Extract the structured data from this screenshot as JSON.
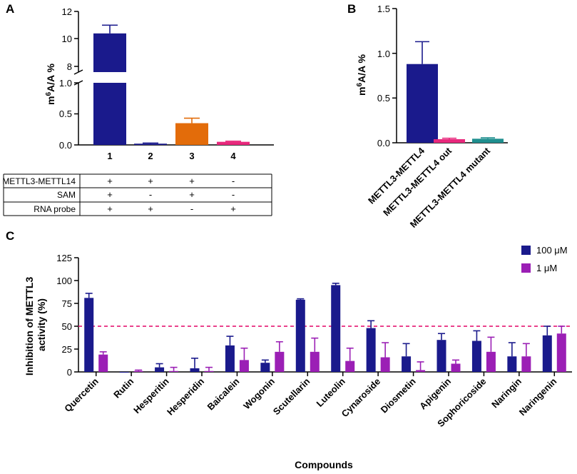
{
  "panels": {
    "A": {
      "label": "A",
      "ylabel_pre": "m",
      "ylabel_sup": "6",
      "ylabel_post": "A/A %",
      "upper_ticks": [
        "8",
        "10",
        "12"
      ],
      "lower_ticks": [
        "0.0",
        "0.5",
        "1.0"
      ],
      "table": {
        "rows": [
          {
            "label": "METTL3-METTL14",
            "values": [
              "+",
              "+",
              "+",
              "-"
            ]
          },
          {
            "label": "SAM",
            "values": [
              "+",
              "-",
              "+",
              "-"
            ]
          },
          {
            "label": "RNA probe",
            "values": [
              "+",
              "+",
              "-",
              "+"
            ]
          }
        ]
      }
    },
    "B": {
      "label": "B",
      "ylabel_pre": "m",
      "ylabel_sup": "6",
      "ylabel_post": "A/A %",
      "ticks": [
        "0.0",
        "0.5",
        "1.0",
        "1.5"
      ]
    },
    "C": {
      "label": "C",
      "ylabel_line1": "Inhibition of METTL3",
      "ylabel_line2": "activity (%)",
      "xlabel": "Compounds",
      "ticks": [
        "0",
        "25",
        "50",
        "75",
        "100",
        "125"
      ]
    }
  },
  "colors": {
    "navy": "#1a1a8c",
    "orange": "#e36c0a",
    "pink": "#e8287c",
    "teal": "#1f8f8f",
    "purple": "#9b1fb5",
    "dashed": "#e8287c"
  },
  "chart_data": [
    {
      "panel": "A",
      "type": "bar",
      "title": "",
      "xlabel": "",
      "ylabel": "m6A/A %",
      "categories": [
        "1",
        "2",
        "3",
        "4"
      ],
      "values": [
        10.4,
        0.02,
        0.35,
        0.05
      ],
      "errors": [
        0.6,
        0.01,
        0.08,
        0.01
      ],
      "colors": [
        "#1a1a8c",
        "#1a1a8c",
        "#e36c0a",
        "#e8287c"
      ],
      "ylim_lower": [
        0,
        1.0
      ],
      "ylim_upper": [
        7.5,
        12
      ],
      "axis_break": [
        1.0,
        7.5
      ]
    },
    {
      "panel": "B",
      "type": "bar",
      "title": "",
      "xlabel": "",
      "ylabel": "m6A/A %",
      "categories": [
        "METTL3-METTL4",
        "METTL3-METTL4 out",
        "METTL3-METTL4 mutant"
      ],
      "values": [
        0.88,
        0.04,
        0.045
      ],
      "errors": [
        0.25,
        0.01,
        0.01
      ],
      "colors": [
        "#1a1a8c",
        "#e8287c",
        "#1f8f8f"
      ],
      "ylim": [
        0,
        1.5
      ]
    },
    {
      "panel": "C",
      "type": "bar",
      "title": "",
      "xlabel": "Compounds",
      "ylabel": "Inhibition of METTL3 activity (%)",
      "ylim": [
        0,
        125
      ],
      "reference_line": 50,
      "legend_position": "top-right",
      "categories": [
        "Quercetin",
        "Rutin",
        "Hesperitin",
        "Hesperidin",
        "Baicalein",
        "Wogonin",
        "Scutellarin",
        "Luteolin",
        "Cynaroside",
        "Diosmetin",
        "Apigenin",
        "Sophoricoside",
        "Naringin",
        "Naringenin"
      ],
      "series": [
        {
          "name": "100 μM",
          "color": "#1a1a8c",
          "values": [
            81,
            0,
            5,
            4,
            29,
            10,
            79,
            95,
            48,
            17,
            35,
            34,
            17,
            40
          ],
          "errors": [
            5,
            0,
            4,
            11,
            10,
            3,
            1,
            2,
            8,
            14,
            7,
            11,
            15,
            10
          ]
        },
        {
          "name": "1 μM",
          "color": "#9b1fb5",
          "values": [
            19,
            1,
            1,
            1,
            13,
            22,
            22,
            12,
            16,
            2,
            9,
            22,
            17,
            42
          ],
          "errors": [
            3,
            1,
            4,
            4,
            13,
            11,
            15,
            14,
            16,
            9,
            4,
            16,
            14,
            8
          ]
        }
      ]
    }
  ]
}
